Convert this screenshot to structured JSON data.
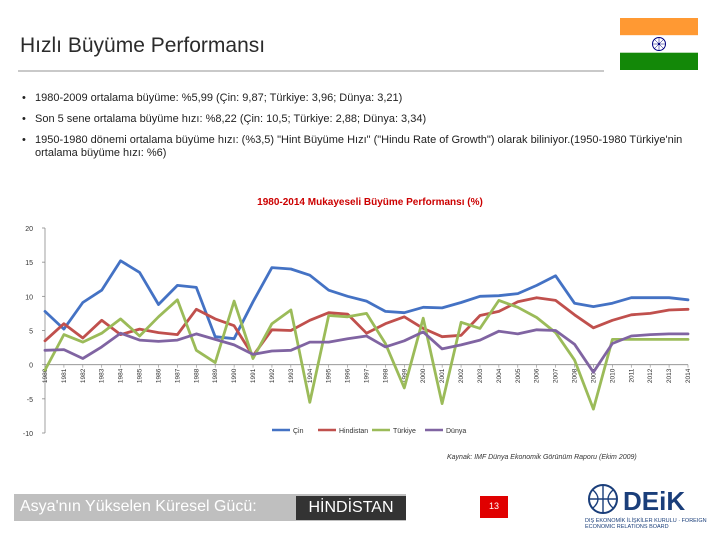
{
  "slide": {
    "title": "Hızlı Büyüme Performansı",
    "bullets": [
      {
        "text": "1980-2009 ortalama büyüme: %5,99 (Çin: 9,87; Türkiye: 3,96; Dünya: 3,21)"
      },
      {
        "text": "Son 5 sene ortalama büyüme hızı: %8,22 (Çin: 10,5; Türkiye: 2,88; Dünya: 3,34)"
      },
      {
        "text": "1950-1980 dönemi ortalama büyüme hızı: (%3,5) \"Hint Büyüme Hızı\" (\"Hindu Rate of Growth\") olarak biliniyor.(1950-1980 Türkiye'nin ortalama büyüme hızı: %6)"
      }
    ],
    "source": "Kaynak: IMF Dünya Ekonomik Görünüm Raporu (Ekim 2009)",
    "footer_text": "Asya'nın Yükselen Küresel Gücü:",
    "footer_highlight": "HİNDİSTAN",
    "page_number": "13",
    "logo_text": "DEiK",
    "logo_subtext": "DIŞ EKONOMİK İLİŞKİLER KURULU · FOREIGN ECONOMIC RELATIONS BOARD"
  },
  "colors": {
    "title_rule": "#c9c9c9",
    "chart_title": "#cc0000",
    "footer_bar": "#bfbfbf",
    "footer_highlight_bg": "#333333",
    "page_badge": "#e00000",
    "logo": "#1a3e7a"
  },
  "icons": {
    "bullet": "•",
    "flag": "india-flag-icon",
    "logo": "deik-globe-icon"
  },
  "chart_data": {
    "type": "line",
    "title": "1980-2014 Mukayeseli Büyüme Performansı (%)",
    "x": [
      "1980",
      "1981",
      "1982",
      "1983",
      "1984",
      "1985",
      "1986",
      "1987",
      "1988",
      "1989",
      "1990",
      "1991",
      "1992",
      "1993",
      "1994",
      "1995",
      "1996",
      "1997",
      "1998",
      "1999",
      "2000",
      "2001",
      "2002",
      "2003",
      "2004",
      "2005",
      "2006",
      "2007",
      "2008",
      "2009",
      "2010",
      "2011",
      "2012",
      "2013",
      "2014"
    ],
    "ylim": [
      -10,
      20
    ],
    "yticks": [
      -10,
      -5,
      0,
      5,
      10,
      15,
      20
    ],
    "grid": false,
    "legend_position": "bottom",
    "series": [
      {
        "name": "Çin",
        "color": "#4472c4",
        "values": [
          7.8,
          5.2,
          9.1,
          10.9,
          15.2,
          13.5,
          8.8,
          11.6,
          11.3,
          4.1,
          3.8,
          9.2,
          14.2,
          14.0,
          13.1,
          10.9,
          10.0,
          9.3,
          7.8,
          7.6,
          8.4,
          8.3,
          9.1,
          10.0,
          10.1,
          10.4,
          11.6,
          13.0,
          9.0,
          8.5,
          9.0,
          9.8,
          9.8,
          9.8,
          9.5
        ]
      },
      {
        "name": "Hindistan",
        "color": "#c0504d",
        "values": [
          3.5,
          6.0,
          3.9,
          6.5,
          4.4,
          5.2,
          4.7,
          4.4,
          8.1,
          6.7,
          5.7,
          1.3,
          5.1,
          5.0,
          6.5,
          7.6,
          7.4,
          4.6,
          6.0,
          7.0,
          5.3,
          4.1,
          4.3,
          7.2,
          7.8,
          9.2,
          9.8,
          9.4,
          7.3,
          5.4,
          6.5,
          7.3,
          7.5,
          8.0,
          8.1
        ]
      },
      {
        "name": "Türkiye",
        "color": "#9bbb59",
        "values": [
          -0.8,
          4.4,
          3.3,
          4.6,
          6.7,
          4.2,
          7.0,
          9.5,
          2.1,
          0.3,
          9.3,
          0.9,
          6.0,
          8.0,
          -5.5,
          7.2,
          7.0,
          7.5,
          3.1,
          -3.4,
          6.8,
          -5.7,
          6.2,
          5.3,
          9.4,
          8.4,
          6.9,
          4.7,
          0.7,
          -6.5,
          3.7,
          3.7,
          3.7,
          3.7,
          3.7
        ]
      },
      {
        "name": "Dünya",
        "color": "#8064a2",
        "values": [
          2.1,
          2.2,
          0.9,
          2.6,
          4.6,
          3.6,
          3.4,
          3.6,
          4.5,
          3.7,
          2.9,
          1.5,
          2.0,
          2.1,
          3.3,
          3.3,
          3.8,
          4.2,
          2.6,
          3.5,
          4.8,
          2.3,
          2.9,
          3.6,
          4.9,
          4.5,
          5.1,
          5.0,
          3.0,
          -1.1,
          3.1,
          4.2,
          4.4,
          4.5,
          4.5
        ]
      }
    ]
  }
}
